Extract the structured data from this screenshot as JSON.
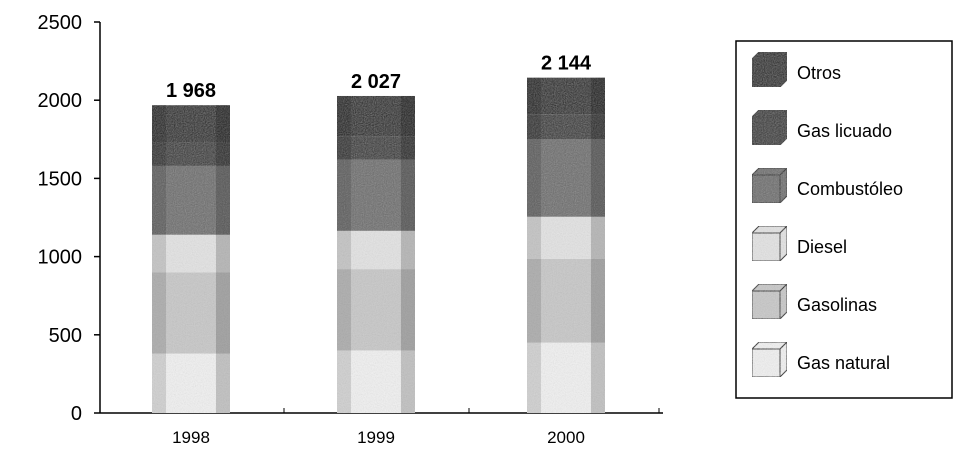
{
  "chart_data": {
    "type": "bar",
    "stacked": true,
    "title": "",
    "xlabel": "",
    "ylabel": "",
    "categories": [
      "1998",
      "1999",
      "2000"
    ],
    "totals": [
      "1 968",
      "2 027",
      "2 144"
    ],
    "ylim": [
      0,
      2500
    ],
    "yticks": [
      "0",
      "500",
      "1000",
      "1500",
      "2000",
      "2500"
    ],
    "grid": false,
    "legend_position": "right",
    "series": [
      {
        "name": "Gas natural",
        "values": [
          380,
          400,
          450
        ],
        "color": "#f2f2f2"
      },
      {
        "name": "Gasolinas",
        "values": [
          520,
          520,
          535
        ],
        "color": "#c8c8c8"
      },
      {
        "name": "Diesel",
        "values": [
          240,
          245,
          270
        ],
        "color": "#e4e4e4"
      },
      {
        "name": "Combustóleo",
        "values": [
          440,
          455,
          495
        ],
        "color": "#6a6a6a"
      },
      {
        "name": "Gas licuado",
        "values": [
          150,
          150,
          160
        ],
        "color": "#2a2a2a"
      },
      {
        "name": "Otros",
        "values": [
          238,
          257,
          234
        ],
        "color": "#060606"
      }
    ]
  }
}
